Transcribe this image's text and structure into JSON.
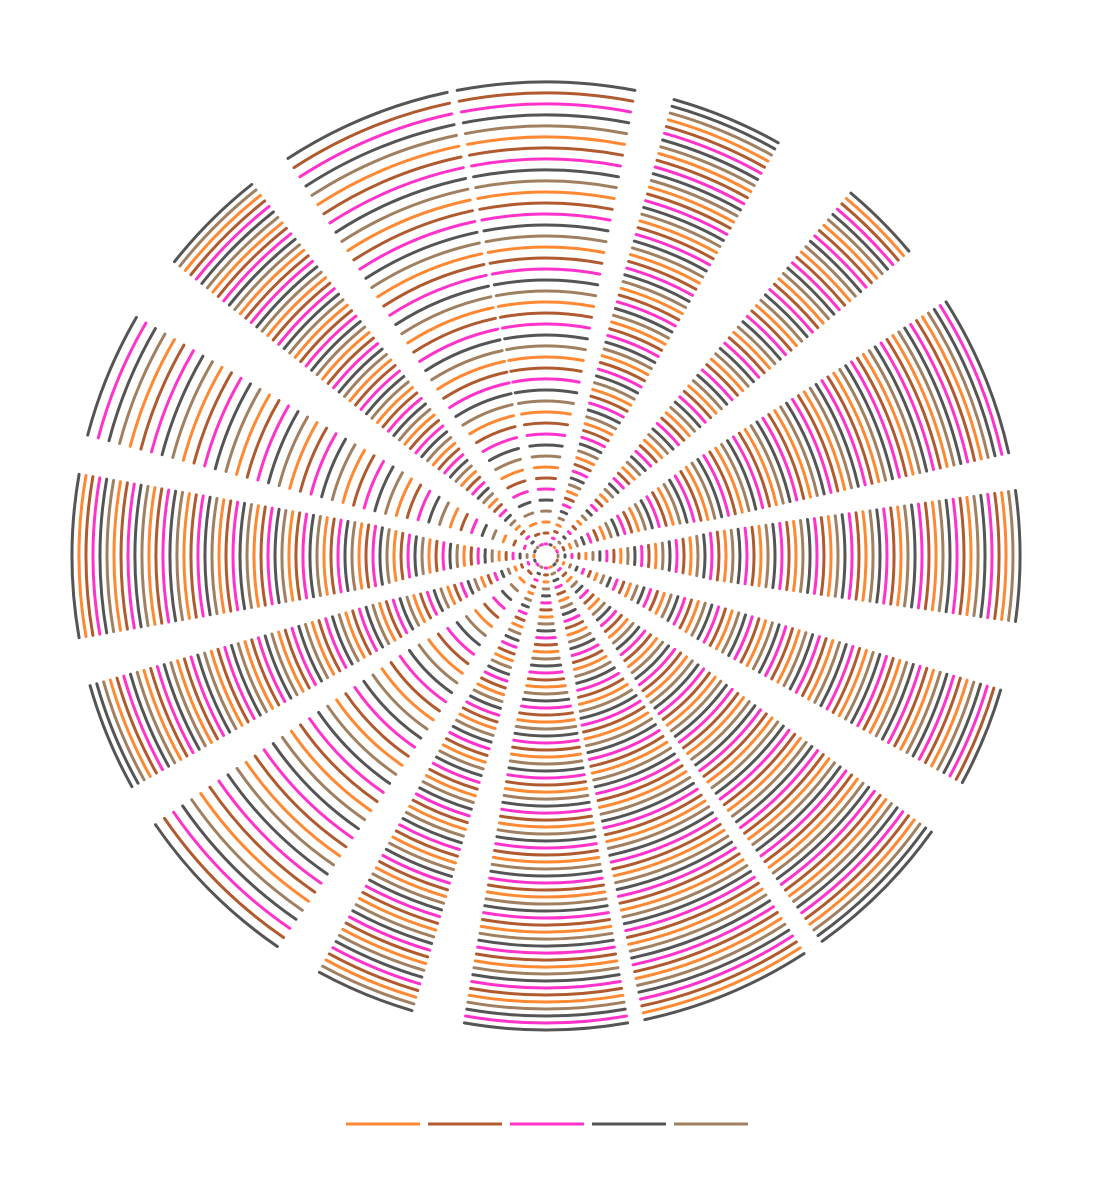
{
  "chart_data": {
    "type": "radial-line-segments",
    "title": "",
    "grid": false,
    "legend_position": "bottom",
    "palette": [
      "#ff8833",
      "#b05a30",
      "#ff33cc",
      "#555555",
      "#a08060"
    ],
    "sectors": 16,
    "band_fill": [
      0.98,
      0.62,
      0.45,
      0.9,
      0.72,
      0.55,
      0.85,
      0.95,
      0.9,
      0.55,
      0.95,
      0.6,
      0.9,
      0.7,
      0.6,
      0.95
    ],
    "band_density": [
      1,
      2,
      2,
      2,
      2,
      2,
      2,
      2,
      2,
      2,
      1,
      2,
      2,
      1,
      2,
      1
    ],
    "legend": [
      {
        "name": "",
        "color": "#ff8833"
      },
      {
        "name": "",
        "color": "#b05a30"
      },
      {
        "name": "",
        "color": "#ff33cc"
      },
      {
        "name": "",
        "color": "#555555"
      },
      {
        "name": "",
        "color": "#a08060"
      }
    ]
  }
}
